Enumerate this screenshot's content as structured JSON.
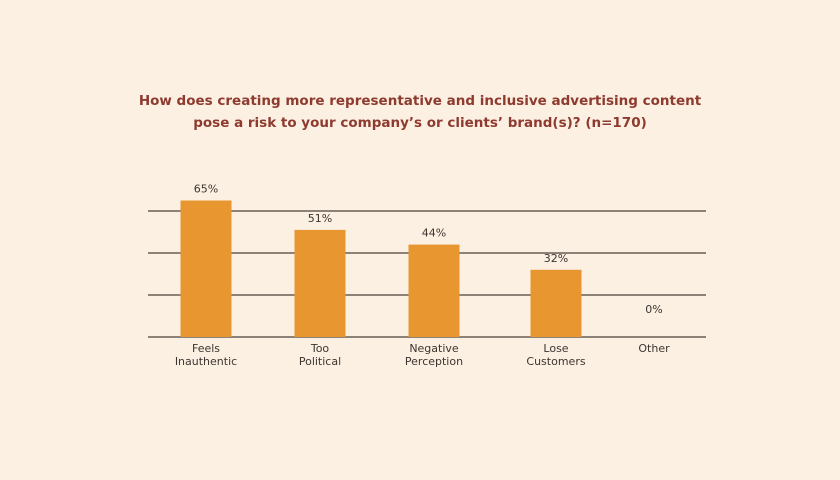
{
  "colors": {
    "background": "#fcf0e2",
    "title": "#8e3a2f",
    "bar": "#e8962f",
    "text": "#3c3530",
    "gridline": "#4a4038"
  },
  "chart_data": {
    "type": "bar",
    "title_lines": [
      "How does creating more representative and inclusive advertising content",
      "pose a risk to your company’s or clients’ brand(s)? (n=170)"
    ],
    "categories": [
      [
        "Feels",
        "Inauthentic"
      ],
      [
        "Too",
        "Political"
      ],
      [
        "Negative",
        "Perception"
      ],
      [
        "Lose",
        "Customers"
      ],
      [
        "Other"
      ]
    ],
    "values": [
      65,
      51,
      44,
      32,
      0
    ],
    "data_labels": [
      "65%",
      "51%",
      "44%",
      "32%",
      "0%"
    ],
    "ylim": [
      0,
      60
    ],
    "gridlines": [
      20,
      40,
      60
    ],
    "grid": true,
    "legend": "none"
  }
}
